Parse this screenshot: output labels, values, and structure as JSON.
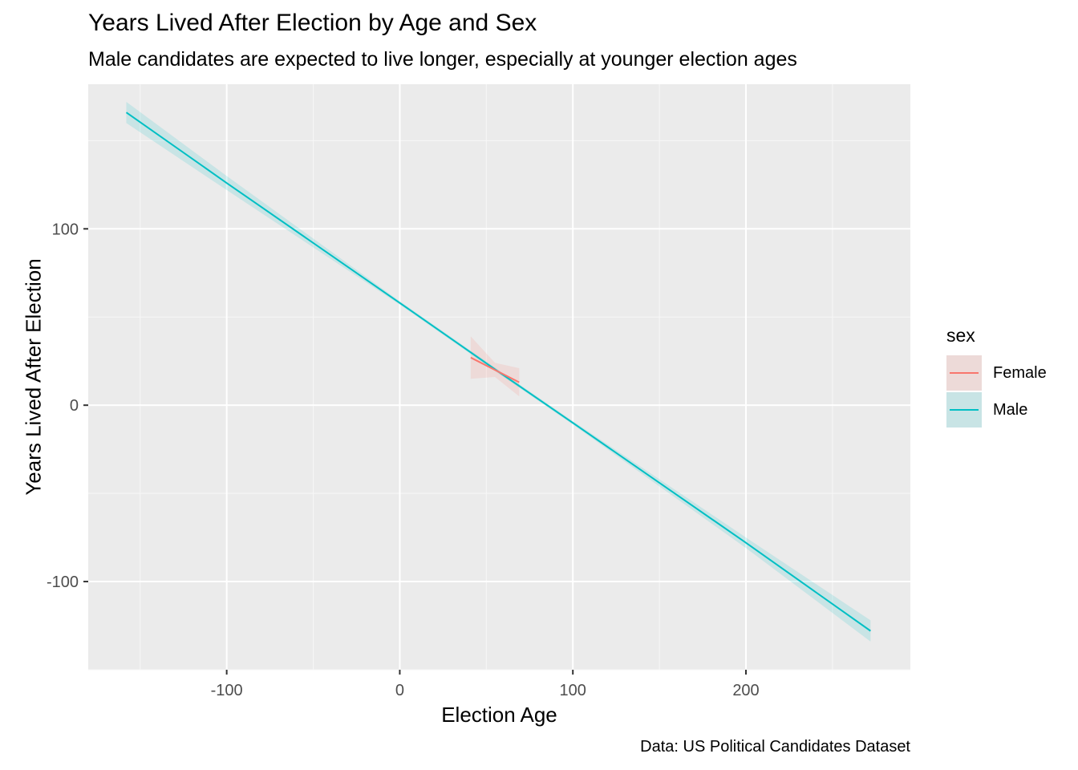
{
  "chart_data": {
    "type": "line",
    "title": "Years Lived After Election by Age and Sex",
    "subtitle": "Male candidates are expected to live longer, especially at younger election ages",
    "caption": "Data: US Political Candidates Dataset",
    "xlabel": "Election Age",
    "ylabel": "Years Lived After Election",
    "xlim": [
      -180,
      295
    ],
    "ylim": [
      -150,
      182
    ],
    "x_ticks": [
      -100,
      0,
      100,
      200
    ],
    "y_ticks": [
      -100,
      0,
      100
    ],
    "x_tick_labels": [
      "-100",
      "0",
      "100",
      "200"
    ],
    "y_tick_labels": [
      "-100",
      "0",
      "100"
    ],
    "grid": true,
    "legend": {
      "title": "sex",
      "position": "right"
    },
    "series": [
      {
        "name": "Female",
        "color": "#F8766D",
        "fill": "#F8766D",
        "x": [
          41,
          55,
          69
        ],
        "y": [
          27,
          20,
          13
        ],
        "ci_lower": [
          15,
          16,
          5
        ],
        "ci_upper": [
          39,
          24,
          21
        ]
      },
      {
        "name": "Male",
        "color": "#00BFC4",
        "fill": "#00BFC4",
        "x": [
          -158,
          -100,
          0,
          57,
          100,
          200,
          272
        ],
        "y": [
          166,
          126,
          58,
          19,
          -10,
          -78,
          -128
        ],
        "ci_lower": [
          160,
          122,
          57,
          18,
          -11,
          -81,
          -134
        ],
        "ci_upper": [
          172,
          130,
          59,
          20,
          -9,
          -75,
          -122
        ]
      }
    ]
  }
}
